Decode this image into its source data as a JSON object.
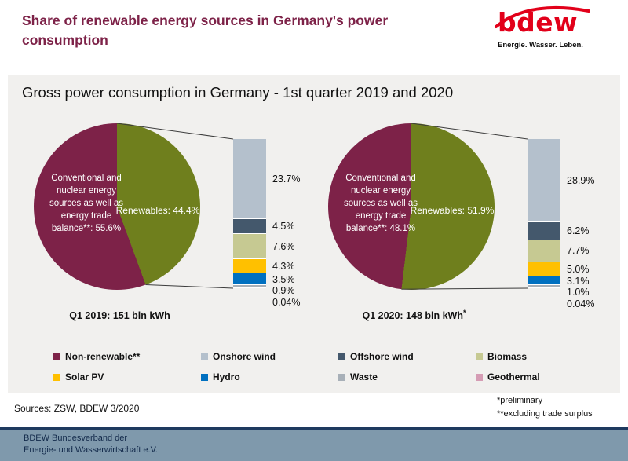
{
  "header": {
    "title": "Share of renewable energy sources in Germany's power consumption",
    "logo": {
      "text": "bdew",
      "tagline": "Energie. Wasser. Leben.",
      "brand_color": "#e2001a"
    }
  },
  "panel": {
    "title": "Gross power consumption in Germany - 1st quarter 2019 and 2020",
    "background": "#f1f0ee"
  },
  "chart_data": [
    {
      "type": "pie",
      "caption": "Q1 2019: 151 bln kWh",
      "caption_note": "",
      "total_bln_kwh": 151,
      "slices": [
        {
          "name": "Non-renewable",
          "label": "Conventional and nuclear energy sources as well as energy trade balance**: 55.6%",
          "value": 55.6,
          "color": "#7d2248"
        },
        {
          "name": "Renewables",
          "label": "Renewables: 44.4%",
          "value": 44.4,
          "color": "#6f7f1d"
        }
      ],
      "renewables_breakdown": [
        {
          "key": "onshore-wind",
          "label": "Onshore wind",
          "value": 23.7,
          "value_label": "23.7%",
          "color": "#b4c0cc"
        },
        {
          "key": "offshore-wind",
          "label": "Offshore wind",
          "value": 4.5,
          "value_label": "4.5%",
          "color": "#44586c"
        },
        {
          "key": "biomass",
          "label": "Biomass",
          "value": 7.6,
          "value_label": "7.6%",
          "color": "#c6c992"
        },
        {
          "key": "solar-pv",
          "label": "Solar PV",
          "value": 4.3,
          "value_label": "4.3%",
          "color": "#ffc000"
        },
        {
          "key": "hydro",
          "label": "Hydro",
          "value": 3.5,
          "value_label": "3.5%",
          "color": "#0070c0"
        },
        {
          "key": "waste",
          "label": "Waste",
          "value": 0.9,
          "value_label": "0.9%",
          "color": "#a8b0b8"
        },
        {
          "key": "geothermal",
          "label": "Geothermal",
          "value": 0.04,
          "value_label": "0.04%",
          "color": "#d59cb4"
        }
      ]
    },
    {
      "type": "pie",
      "caption": "Q1 2020: 148 bln kWh",
      "caption_note": "*",
      "total_bln_kwh": 148,
      "slices": [
        {
          "name": "Non-renewable",
          "label": "Conventional and nuclear energy sources as well as energy trade balance**: 48.1%",
          "value": 48.1,
          "color": "#7d2248"
        },
        {
          "name": "Renewables",
          "label": "Renewables: 51.9%",
          "value": 51.9,
          "color": "#6f7f1d"
        }
      ],
      "renewables_breakdown": [
        {
          "key": "onshore-wind",
          "label": "Onshore wind",
          "value": 28.9,
          "value_label": "28.9%",
          "color": "#b4c0cc"
        },
        {
          "key": "offshore-wind",
          "label": "Offshore wind",
          "value": 6.2,
          "value_label": "6.2%",
          "color": "#44586c"
        },
        {
          "key": "biomass",
          "label": "Biomass",
          "value": 7.7,
          "value_label": "7.7%",
          "color": "#c6c992"
        },
        {
          "key": "solar-pv",
          "label": "Solar PV",
          "value": 5.0,
          "value_label": "5.0%",
          "color": "#ffc000"
        },
        {
          "key": "hydro",
          "label": "Hydro",
          "value": 3.1,
          "value_label": "3.1%",
          "color": "#0070c0"
        },
        {
          "key": "waste",
          "label": "Waste",
          "value": 1.0,
          "value_label": "1.0%",
          "color": "#a8b0b8"
        },
        {
          "key": "geothermal",
          "label": "Geothermal",
          "value": 0.04,
          "value_label": "0.04%",
          "color": "#d59cb4"
        }
      ]
    }
  ],
  "legend": {
    "items": [
      {
        "label": "Non-renewable**",
        "color": "#7d2248"
      },
      {
        "label": "Onshore wind",
        "color": "#b4c0cc"
      },
      {
        "label": "Offshore wind",
        "color": "#44586c"
      },
      {
        "label": "Biomass",
        "color": "#c6c992"
      },
      {
        "label": "Solar PV",
        "color": "#ffc000"
      },
      {
        "label": "Hydro",
        "color": "#0070c0"
      },
      {
        "label": "Waste",
        "color": "#a8b0b8"
      },
      {
        "label": "Geothermal",
        "color": "#d59cb4"
      }
    ]
  },
  "sources": "Sources: ZSW, BDEW 3/2020",
  "notes": [
    "*preliminary",
    "**excluding trade surplus"
  ],
  "footer": {
    "line1": "BDEW Bundesverband der",
    "line2": "Energie- und Wasserwirtschaft e.V."
  }
}
